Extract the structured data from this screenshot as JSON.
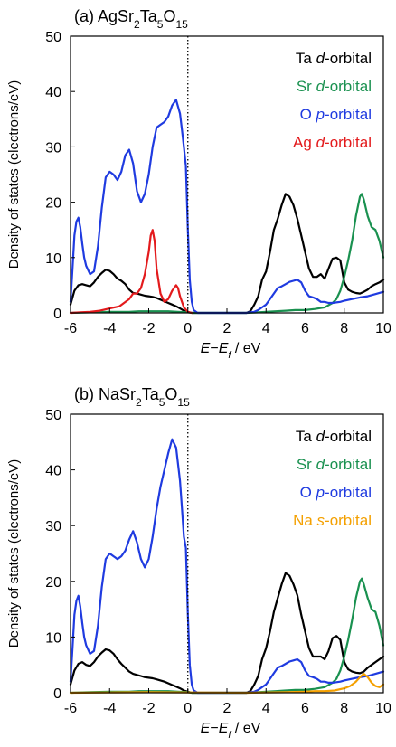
{
  "chart_data": [
    {
      "type": "line",
      "panel_label": "(a)",
      "title": "AgSr₂Ta₅O₁₅",
      "title_parts": [
        {
          "t": "AgSr",
          "sub": false
        },
        {
          "t": "2",
          "sub": true
        },
        {
          "t": "Ta",
          "sub": false
        },
        {
          "t": "5",
          "sub": true
        },
        {
          "t": "O",
          "sub": false
        },
        {
          "t": "15",
          "sub": true
        }
      ],
      "xlabel": "E−Ef / eV",
      "ylabel": "Density of states (electrons/eV)",
      "xlim": [
        -6,
        10
      ],
      "ylim": [
        0,
        50
      ],
      "xticks": [
        -6,
        -4,
        -2,
        0,
        2,
        4,
        6,
        8,
        10
      ],
      "yticks": [
        0,
        10,
        20,
        30,
        40,
        50
      ],
      "fermi_line_x": 0,
      "legend_position": "top-right",
      "series": [
        {
          "name": "Ta d-orbital",
          "prefix": "Ta ",
          "italic": "d",
          "suffix": "-orbital",
          "color": "#000000",
          "x": [
            -6.0,
            -5.8,
            -5.6,
            -5.4,
            -5.2,
            -5.0,
            -4.8,
            -4.6,
            -4.4,
            -4.2,
            -4.0,
            -3.8,
            -3.6,
            -3.4,
            -3.2,
            -3.0,
            -2.8,
            -2.6,
            -2.4,
            -2.2,
            -2.0,
            -1.8,
            -1.6,
            -1.4,
            -1.2,
            -1.0,
            -0.8,
            -0.6,
            -0.4,
            -0.2,
            0.0,
            0.2,
            3.0,
            3.2,
            3.4,
            3.6,
            3.8,
            4.0,
            4.2,
            4.4,
            4.6,
            4.8,
            5.0,
            5.2,
            5.4,
            5.6,
            5.8,
            6.0,
            6.2,
            6.4,
            6.6,
            6.8,
            7.0,
            7.2,
            7.4,
            7.6,
            7.8,
            8.0,
            8.2,
            8.4,
            8.6,
            8.8,
            9.0,
            9.2,
            9.4,
            9.6,
            9.8,
            10.0
          ],
          "y": [
            1.5,
            4.0,
            5.0,
            5.2,
            5.0,
            4.8,
            5.5,
            6.5,
            7.2,
            7.8,
            7.6,
            7.0,
            6.2,
            5.8,
            5.2,
            4.2,
            3.6,
            3.5,
            3.3,
            3.1,
            3.0,
            2.9,
            2.7,
            2.4,
            2.1,
            1.8,
            1.5,
            1.2,
            0.8,
            0.4,
            0.2,
            0.0,
            0.0,
            0.3,
            1.5,
            3.0,
            6.0,
            7.5,
            11.0,
            15.0,
            17.0,
            19.5,
            21.5,
            21.0,
            19.5,
            17.0,
            14.0,
            11.0,
            8.0,
            6.5,
            6.5,
            7.0,
            6.2,
            8.0,
            9.8,
            10.0,
            9.5,
            5.5,
            4.2,
            3.8,
            3.6,
            3.5,
            3.8,
            4.2,
            4.8,
            5.2,
            5.5,
            6.0
          ]
        },
        {
          "name": "Sr d-orbital",
          "prefix": "Sr ",
          "italic": "d",
          "suffix": "-orbital",
          "color": "#1a9150",
          "x": [
            -6.0,
            -5.0,
            -4.0,
            -3.0,
            -2.5,
            -2.0,
            -1.5,
            -1.0,
            -0.5,
            0.0,
            0.2,
            3.0,
            3.6,
            4.0,
            4.5,
            5.0,
            5.5,
            6.0,
            6.5,
            7.0,
            7.4,
            7.6,
            7.8,
            8.0,
            8.2,
            8.4,
            8.6,
            8.8,
            8.9,
            9.0,
            9.2,
            9.4,
            9.6,
            9.8,
            10.0
          ],
          "y": [
            0.0,
            0.1,
            0.2,
            0.2,
            0.3,
            0.3,
            0.3,
            0.3,
            0.2,
            0.1,
            0.0,
            0.0,
            0.1,
            0.2,
            0.3,
            0.4,
            0.5,
            0.5,
            0.7,
            1.0,
            1.8,
            2.5,
            4.0,
            6.5,
            9.5,
            13.0,
            17.5,
            21.0,
            21.5,
            20.5,
            17.5,
            15.5,
            15.0,
            13.0,
            10.0
          ]
        },
        {
          "name": "O p-orbital",
          "prefix": "O ",
          "italic": "p",
          "suffix": "-orbital",
          "color": "#1f3be0",
          "x": [
            -6.0,
            -5.9,
            -5.8,
            -5.7,
            -5.6,
            -5.5,
            -5.4,
            -5.3,
            -5.2,
            -5.0,
            -4.8,
            -4.6,
            -4.4,
            -4.2,
            -4.0,
            -3.8,
            -3.6,
            -3.4,
            -3.2,
            -3.0,
            -2.8,
            -2.6,
            -2.4,
            -2.2,
            -2.0,
            -1.8,
            -1.6,
            -1.4,
            -1.2,
            -1.0,
            -0.8,
            -0.6,
            -0.4,
            -0.3,
            -0.2,
            -0.1,
            0.0,
            0.1,
            0.2,
            0.3,
            0.5,
            3.0,
            3.4,
            3.6,
            3.8,
            4.0,
            4.2,
            4.4,
            4.6,
            4.8,
            5.0,
            5.2,
            5.4,
            5.6,
            5.8,
            6.0,
            6.2,
            6.4,
            6.6,
            6.8,
            7.0,
            7.2,
            7.4,
            7.6,
            7.8,
            8.0,
            8.4,
            8.8,
            9.2,
            9.6,
            10.0
          ],
          "y": [
            2.0,
            8.0,
            14.0,
            16.5,
            17.2,
            15.5,
            12.5,
            10.0,
            8.5,
            7.0,
            7.5,
            12.0,
            19.0,
            24.5,
            25.5,
            25.0,
            24.0,
            25.5,
            28.5,
            29.5,
            27.0,
            22.0,
            20.0,
            21.5,
            25.0,
            30.0,
            33.5,
            34.0,
            34.5,
            35.5,
            37.5,
            38.5,
            36.0,
            33.0,
            30.0,
            26.5,
            15.0,
            6.0,
            2.0,
            0.5,
            0.0,
            0.0,
            0.2,
            0.5,
            1.0,
            1.5,
            2.5,
            3.5,
            4.5,
            4.8,
            5.2,
            5.6,
            5.8,
            6.0,
            5.5,
            4.0,
            3.0,
            2.8,
            2.5,
            2.0,
            2.0,
            1.8,
            1.8,
            1.9,
            2.0,
            2.2,
            2.5,
            2.8,
            3.0,
            3.4,
            3.8
          ]
        },
        {
          "name": "Ag d-orbital",
          "prefix": "Ag ",
          "italic": "d",
          "suffix": "-orbital",
          "color": "#e31a1c",
          "x": [
            -6.0,
            -5.5,
            -5.0,
            -4.5,
            -4.0,
            -3.5,
            -3.0,
            -2.8,
            -2.6,
            -2.4,
            -2.2,
            -2.0,
            -1.9,
            -1.8,
            -1.7,
            -1.6,
            -1.4,
            -1.2,
            -1.0,
            -0.8,
            -0.6,
            -0.5,
            -0.4,
            -0.2,
            0.0,
            0.2
          ],
          "y": [
            0.0,
            0.1,
            0.2,
            0.4,
            0.8,
            1.2,
            2.5,
            3.5,
            3.5,
            4.5,
            7.0,
            11.0,
            14.0,
            15.0,
            13.0,
            8.0,
            3.5,
            2.0,
            2.5,
            4.0,
            5.0,
            4.5,
            3.0,
            1.0,
            0.2,
            0.0
          ]
        }
      ]
    },
    {
      "type": "line",
      "panel_label": "(b)",
      "title": "NaSr₂Ta₅O₁₅",
      "title_parts": [
        {
          "t": "NaSr",
          "sub": false
        },
        {
          "t": "2",
          "sub": true
        },
        {
          "t": "Ta",
          "sub": false
        },
        {
          "t": "5",
          "sub": true
        },
        {
          "t": "O",
          "sub": false
        },
        {
          "t": "15",
          "sub": true
        }
      ],
      "xlabel": "E−Ef / eV",
      "ylabel": "Density of states (electrons/eV)",
      "xlim": [
        -6,
        10
      ],
      "ylim": [
        0,
        50
      ],
      "xticks": [
        -6,
        -4,
        -2,
        0,
        2,
        4,
        6,
        8,
        10
      ],
      "yticks": [
        0,
        10,
        20,
        30,
        40,
        50
      ],
      "fermi_line_x": 0,
      "legend_position": "top-right",
      "series": [
        {
          "name": "Ta d-orbital",
          "prefix": "Ta ",
          "italic": "d",
          "suffix": "-orbital",
          "color": "#000000",
          "x": [
            -6.0,
            -5.8,
            -5.6,
            -5.4,
            -5.2,
            -5.0,
            -4.8,
            -4.6,
            -4.4,
            -4.2,
            -4.0,
            -3.8,
            -3.6,
            -3.4,
            -3.2,
            -3.0,
            -2.8,
            -2.6,
            -2.4,
            -2.2,
            -2.0,
            -1.8,
            -1.6,
            -1.4,
            -1.2,
            -1.0,
            -0.8,
            -0.6,
            -0.4,
            -0.2,
            0.0,
            0.2,
            3.0,
            3.2,
            3.4,
            3.6,
            3.8,
            4.0,
            4.2,
            4.4,
            4.6,
            4.8,
            5.0,
            5.2,
            5.4,
            5.6,
            5.8,
            6.0,
            6.2,
            6.4,
            6.6,
            6.8,
            7.0,
            7.2,
            7.4,
            7.6,
            7.8,
            8.0,
            8.2,
            8.4,
            8.6,
            8.8,
            9.0,
            9.2,
            9.4,
            9.6,
            9.8,
            10.0
          ],
          "y": [
            1.5,
            4.0,
            5.2,
            5.5,
            5.0,
            4.8,
            5.5,
            6.5,
            7.2,
            7.8,
            7.6,
            7.0,
            6.0,
            5.2,
            4.5,
            3.8,
            3.4,
            3.2,
            3.0,
            2.8,
            2.7,
            2.6,
            2.4,
            2.2,
            2.0,
            1.7,
            1.4,
            1.1,
            0.8,
            0.4,
            0.2,
            0.0,
            0.0,
            0.3,
            1.5,
            3.0,
            6.0,
            8.0,
            11.0,
            14.5,
            17.0,
            19.5,
            21.5,
            21.0,
            19.5,
            17.5,
            14.0,
            11.0,
            8.0,
            6.5,
            6.5,
            6.5,
            6.0,
            7.5,
            9.8,
            10.2,
            9.5,
            5.5,
            4.2,
            3.8,
            3.6,
            3.5,
            3.8,
            4.5,
            5.0,
            5.5,
            6.0,
            6.5
          ]
        },
        {
          "name": "Sr d-orbital",
          "prefix": "Sr ",
          "italic": "d",
          "suffix": "-orbital",
          "color": "#1a9150",
          "x": [
            -6.0,
            -5.0,
            -4.0,
            -3.0,
            -2.5,
            -2.0,
            -1.5,
            -1.0,
            -0.5,
            0.0,
            0.2,
            3.0,
            3.6,
            4.0,
            4.5,
            5.0,
            5.5,
            6.0,
            6.5,
            7.0,
            7.4,
            7.6,
            7.8,
            8.0,
            8.2,
            8.4,
            8.6,
            8.8,
            8.9,
            9.0,
            9.2,
            9.4,
            9.6,
            9.8,
            10.0
          ],
          "y": [
            0.0,
            0.1,
            0.2,
            0.2,
            0.3,
            0.3,
            0.3,
            0.3,
            0.2,
            0.1,
            0.0,
            0.0,
            0.1,
            0.2,
            0.3,
            0.4,
            0.5,
            0.5,
            0.7,
            1.0,
            1.8,
            2.5,
            4.0,
            6.5,
            9.5,
            13.0,
            17.0,
            20.0,
            20.5,
            19.5,
            17.0,
            15.0,
            14.5,
            12.0,
            8.5
          ]
        },
        {
          "name": "O p-orbital",
          "prefix": "O ",
          "italic": "p",
          "suffix": "-orbital",
          "color": "#1f3be0",
          "x": [
            -6.0,
            -5.9,
            -5.8,
            -5.7,
            -5.6,
            -5.5,
            -5.4,
            -5.3,
            -5.2,
            -5.0,
            -4.8,
            -4.6,
            -4.4,
            -4.2,
            -4.0,
            -3.8,
            -3.6,
            -3.4,
            -3.2,
            -3.0,
            -2.8,
            -2.6,
            -2.4,
            -2.2,
            -2.0,
            -1.8,
            -1.6,
            -1.4,
            -1.2,
            -1.0,
            -0.8,
            -0.6,
            -0.4,
            -0.3,
            -0.2,
            -0.1,
            0.0,
            0.1,
            0.2,
            0.3,
            0.5,
            3.0,
            3.4,
            3.6,
            3.8,
            4.0,
            4.2,
            4.4,
            4.6,
            4.8,
            5.0,
            5.2,
            5.4,
            5.6,
            5.8,
            6.0,
            6.2,
            6.4,
            6.6,
            6.8,
            7.0,
            7.2,
            7.4,
            7.6,
            7.8,
            8.0,
            8.4,
            8.8,
            9.2,
            9.6,
            10.0
          ],
          "y": [
            2.0,
            8.0,
            14.0,
            16.5,
            17.4,
            15.5,
            12.5,
            10.0,
            8.5,
            7.0,
            7.5,
            12.0,
            19.0,
            24.0,
            25.0,
            24.5,
            24.0,
            24.5,
            25.5,
            27.5,
            29.0,
            27.0,
            24.0,
            22.5,
            24.0,
            28.0,
            33.0,
            37.0,
            40.0,
            43.0,
            45.5,
            44.0,
            38.0,
            33.0,
            28.0,
            26.0,
            14.0,
            5.0,
            1.5,
            0.4,
            0.0,
            0.0,
            0.2,
            0.5,
            1.0,
            1.5,
            2.5,
            3.5,
            4.5,
            4.8,
            5.2,
            5.6,
            5.8,
            6.0,
            5.5,
            4.0,
            3.0,
            2.8,
            2.5,
            2.0,
            2.0,
            1.8,
            1.8,
            1.9,
            2.0,
            2.2,
            2.5,
            2.8,
            3.0,
            3.4,
            3.8
          ]
        },
        {
          "name": "Na s-orbital",
          "prefix": "Na ",
          "italic": "s",
          "suffix": "-orbital",
          "color": "#f4a000",
          "x": [
            -6.0,
            -4.0,
            -2.0,
            0.0,
            3.0,
            4.0,
            5.0,
            6.0,
            6.5,
            7.0,
            7.5,
            8.0,
            8.3,
            8.6,
            8.8,
            9.0,
            9.2,
            9.4,
            9.6,
            9.8,
            10.0
          ],
          "y": [
            0.0,
            0.05,
            0.1,
            0.05,
            0.0,
            0.05,
            0.1,
            0.2,
            0.3,
            0.3,
            0.4,
            0.8,
            1.2,
            2.0,
            2.8,
            3.4,
            2.8,
            1.8,
            1.2,
            1.0,
            1.5
          ]
        }
      ]
    }
  ]
}
